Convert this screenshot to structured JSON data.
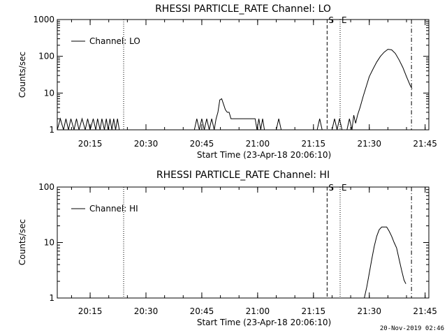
{
  "chart_data": [
    {
      "type": "line",
      "title": "RHESSI PARTICLE_RATE Channel: LO",
      "xlabel": "Start Time (23-Apr-18 20:06:10)",
      "ylabel": "Counts/sec",
      "yscale": "log",
      "ylim": [
        1,
        1000
      ],
      "xlim": [
        "20:06:10",
        "21:46:00"
      ],
      "xticks": [
        "20:15",
        "20:30",
        "20:45",
        "21:00",
        "21:15",
        "21:30",
        "21:45"
      ],
      "yticks": [
        "1",
        "10",
        "100",
        "1000"
      ],
      "legend": {
        "label": "Channel: LO",
        "placement": "top-left"
      },
      "markers": [
        {
          "label": "",
          "time": "20:24:00",
          "style": "dotted"
        },
        {
          "label": "S",
          "time": "21:18:40",
          "style": "dashed"
        },
        {
          "label": "E",
          "time": "21:22:10",
          "style": "dotted"
        },
        {
          "label": "",
          "time": "21:41:20",
          "style": "dash-dot"
        }
      ],
      "series": [
        {
          "name": "Channel: LO",
          "points": [
            [
              "20:06:10",
              1
            ],
            [
              "20:07:00",
              2
            ],
            [
              "20:07:50",
              1
            ],
            [
              "20:08:30",
              2
            ],
            [
              "20:09:10",
              1
            ],
            [
              "20:09:50",
              2
            ],
            [
              "20:10:40",
              1
            ],
            [
              "20:11:20",
              2
            ],
            [
              "20:12:00",
              1
            ],
            [
              "20:12:50",
              2
            ],
            [
              "20:13:40",
              1
            ],
            [
              "20:14:20",
              2
            ],
            [
              "20:15:00",
              1
            ],
            [
              "20:15:50",
              2
            ],
            [
              "20:16:30",
              1
            ],
            [
              "20:17:00",
              2
            ],
            [
              "20:17:40",
              1
            ],
            [
              "20:18:10",
              2
            ],
            [
              "20:18:50",
              1
            ],
            [
              "20:19:20",
              2
            ],
            [
              "20:19:50",
              1
            ],
            [
              "20:20:20",
              2
            ],
            [
              "20:20:50",
              1
            ],
            [
              "20:21:20",
              2
            ],
            [
              "20:21:50",
              1
            ],
            [
              "20:22:20",
              2
            ],
            [
              "20:22:50",
              1
            ],
            [
              "20:43:00",
              1
            ],
            [
              "20:43:40",
              2
            ],
            [
              "20:44:20",
              1
            ],
            [
              "20:45:00",
              2
            ],
            [
              "20:45:40",
              1
            ],
            [
              "20:46:20",
              2
            ],
            [
              "20:47:00",
              1
            ],
            [
              "20:47:40",
              2
            ],
            [
              "20:48:20",
              1
            ],
            [
              "20:48:50",
              2
            ],
            [
              "20:49:20",
              3
            ],
            [
              "20:49:50",
              6.5
            ],
            [
              "20:50:20",
              7
            ],
            [
              "20:50:50",
              5
            ],
            [
              "20:51:20",
              3.5
            ],
            [
              "20:51:50",
              3
            ],
            [
              "20:52:20",
              3
            ],
            [
              "20:52:50",
              2
            ],
            [
              "20:53:20",
              2
            ],
            [
              "20:54:00",
              2
            ],
            [
              "20:56:00",
              2
            ],
            [
              "20:58:00",
              2
            ],
            [
              "20:59:20",
              2
            ],
            [
              "20:59:50",
              1
            ],
            [
              "21:00:20",
              2
            ],
            [
              "21:00:50",
              1
            ],
            [
              "21:01:20",
              2
            ],
            [
              "21:01:50",
              1
            ],
            [
              "21:05:00",
              1
            ],
            [
              "21:05:40",
              2
            ],
            [
              "21:06:20",
              1
            ],
            [
              "21:07:00",
              1
            ],
            [
              "21:16:00",
              1
            ],
            [
              "21:16:40",
              2
            ],
            [
              "21:17:20",
              1
            ],
            [
              "21:20:00",
              1
            ],
            [
              "21:20:40",
              2
            ],
            [
              "21:21:20",
              1
            ],
            [
              "21:22:00",
              2
            ],
            [
              "21:22:40",
              1
            ],
            [
              "21:24:00",
              1
            ],
            [
              "21:24:40",
              2
            ],
            [
              "21:25:20",
              1
            ],
            [
              "21:25:50",
              2.5
            ],
            [
              "21:26:20",
              1.5
            ],
            [
              "21:26:50",
              2.5
            ],
            [
              "21:27:30",
              4
            ],
            [
              "21:28:20",
              8
            ],
            [
              "21:29:10",
              15
            ],
            [
              "21:30:00",
              28
            ],
            [
              "21:31:00",
              45
            ],
            [
              "21:32:00",
              70
            ],
            [
              "21:33:00",
              100
            ],
            [
              "21:34:00",
              130
            ],
            [
              "21:35:00",
              155
            ],
            [
              "21:36:00",
              150
            ],
            [
              "21:37:00",
              120
            ],
            [
              "21:38:00",
              80
            ],
            [
              "21:39:00",
              50
            ],
            [
              "21:40:00",
              28
            ],
            [
              "21:41:00",
              16
            ],
            [
              "21:41:30",
              13
            ]
          ]
        }
      ]
    },
    {
      "type": "line",
      "title": "RHESSI PARTICLE_RATE Channel: HI",
      "xlabel": "Start Time (23-Apr-18 20:06:10)",
      "ylabel": "Counts/sec",
      "yscale": "log",
      "ylim": [
        1,
        100
      ],
      "xlim": [
        "20:06:10",
        "21:46:00"
      ],
      "xticks": [
        "20:15",
        "20:30",
        "20:45",
        "21:00",
        "21:15",
        "21:30",
        "21:45"
      ],
      "yticks": [
        "1",
        "10",
        "100"
      ],
      "legend": {
        "label": "Channel: HI",
        "placement": "top-left"
      },
      "markers": [
        {
          "label": "",
          "time": "20:24:00",
          "style": "dotted"
        },
        {
          "label": "S",
          "time": "21:18:40",
          "style": "dashed"
        },
        {
          "label": "E",
          "time": "21:22:10",
          "style": "dotted"
        },
        {
          "label": "",
          "time": "21:41:20",
          "style": "dash-dot"
        }
      ],
      "series": [
        {
          "name": "Channel: HI",
          "points": [
            [
              "21:28:40",
              1
            ],
            [
              "21:29:20",
              1.6
            ],
            [
              "21:30:00",
              2.8
            ],
            [
              "21:30:40",
              5
            ],
            [
              "21:31:20",
              8.5
            ],
            [
              "21:32:00",
              13
            ],
            [
              "21:32:40",
              17
            ],
            [
              "21:33:20",
              19
            ],
            [
              "21:34:00",
              19
            ],
            [
              "21:34:40",
              19
            ],
            [
              "21:35:20",
              16
            ],
            [
              "21:36:00",
              13
            ],
            [
              "21:36:40",
              10
            ],
            [
              "21:37:20",
              8
            ],
            [
              "21:38:00",
              5
            ],
            [
              "21:38:40",
              3.2
            ],
            [
              "21:39:20",
              2.1
            ],
            [
              "21:39:50",
              1.8
            ]
          ]
        }
      ]
    }
  ],
  "footer_timestamp": "20-Nov-2019 02:46"
}
